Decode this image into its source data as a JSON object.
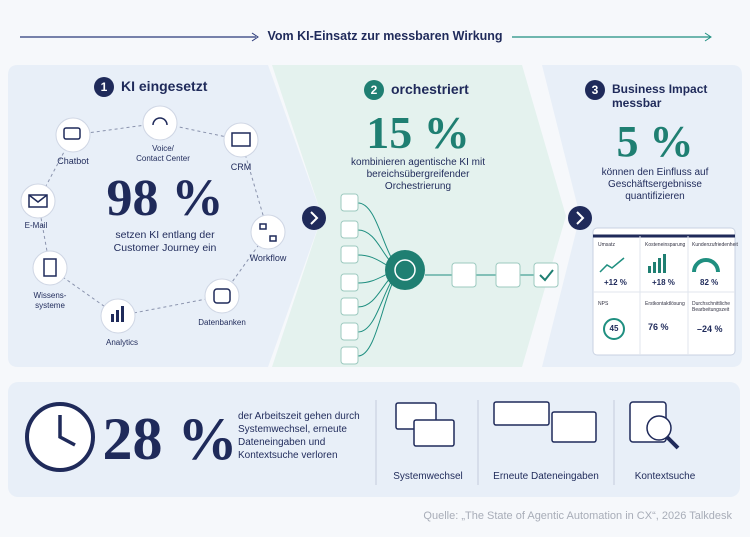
{
  "header": {
    "title": "Vom KI-Einsatz zur messbaren Wirkung"
  },
  "panel1": {
    "step": "1",
    "title": "KI eingesetzt",
    "value": "98 %",
    "text": "setzen KI entlang der Customer Journey ein",
    "nodes": [
      {
        "label": [
          "Chatbot"
        ]
      },
      {
        "label": [
          "Voice/",
          "Contact Center"
        ]
      },
      {
        "label": [
          "CRM"
        ]
      },
      {
        "label": [
          "Workflow"
        ]
      },
      {
        "label": [
          "Datenbanken"
        ]
      },
      {
        "label": [
          "Analytics"
        ]
      },
      {
        "label": [
          "Wissens-",
          "systeme"
        ]
      },
      {
        "label": [
          "E-Mail"
        ]
      }
    ]
  },
  "panel2": {
    "step": "2",
    "title": "orchestriert",
    "value": "15 %",
    "text": "kombinieren agentische KI mit bereichsübergreifender Orchestrierung"
  },
  "panel3": {
    "step": "3",
    "title": "Business Impact messbar",
    "value": "5 %",
    "text": "können den Einfluss auf Geschäftsergebnisse quantifizieren",
    "dashboard": [
      {
        "label": "Umsatz",
        "value": "+12 %"
      },
      {
        "label": "Kosteneinsparung",
        "value": "+18 %"
      },
      {
        "label": "Kundenzufriedenheit",
        "value": "82 %"
      },
      {
        "label": "NPS",
        "value": "45"
      },
      {
        "label": "Erstkontaktlösung",
        "value": "76 %"
      },
      {
        "label": "Durchschnittliche Bearbeitungszeit",
        "value": "–24 %"
      }
    ]
  },
  "bottom": {
    "value": "28 %",
    "text": "der Arbeitszeit gehen durch Systemwechsel, erneute Dateneingaben und Kontextsuche verloren",
    "items": [
      "Systemwechsel",
      "Erneute Dateneingaben",
      "Kontextsuche"
    ]
  },
  "source": "Quelle: „The State of Agentic Automation in CX“, 2026 Talkdesk"
}
